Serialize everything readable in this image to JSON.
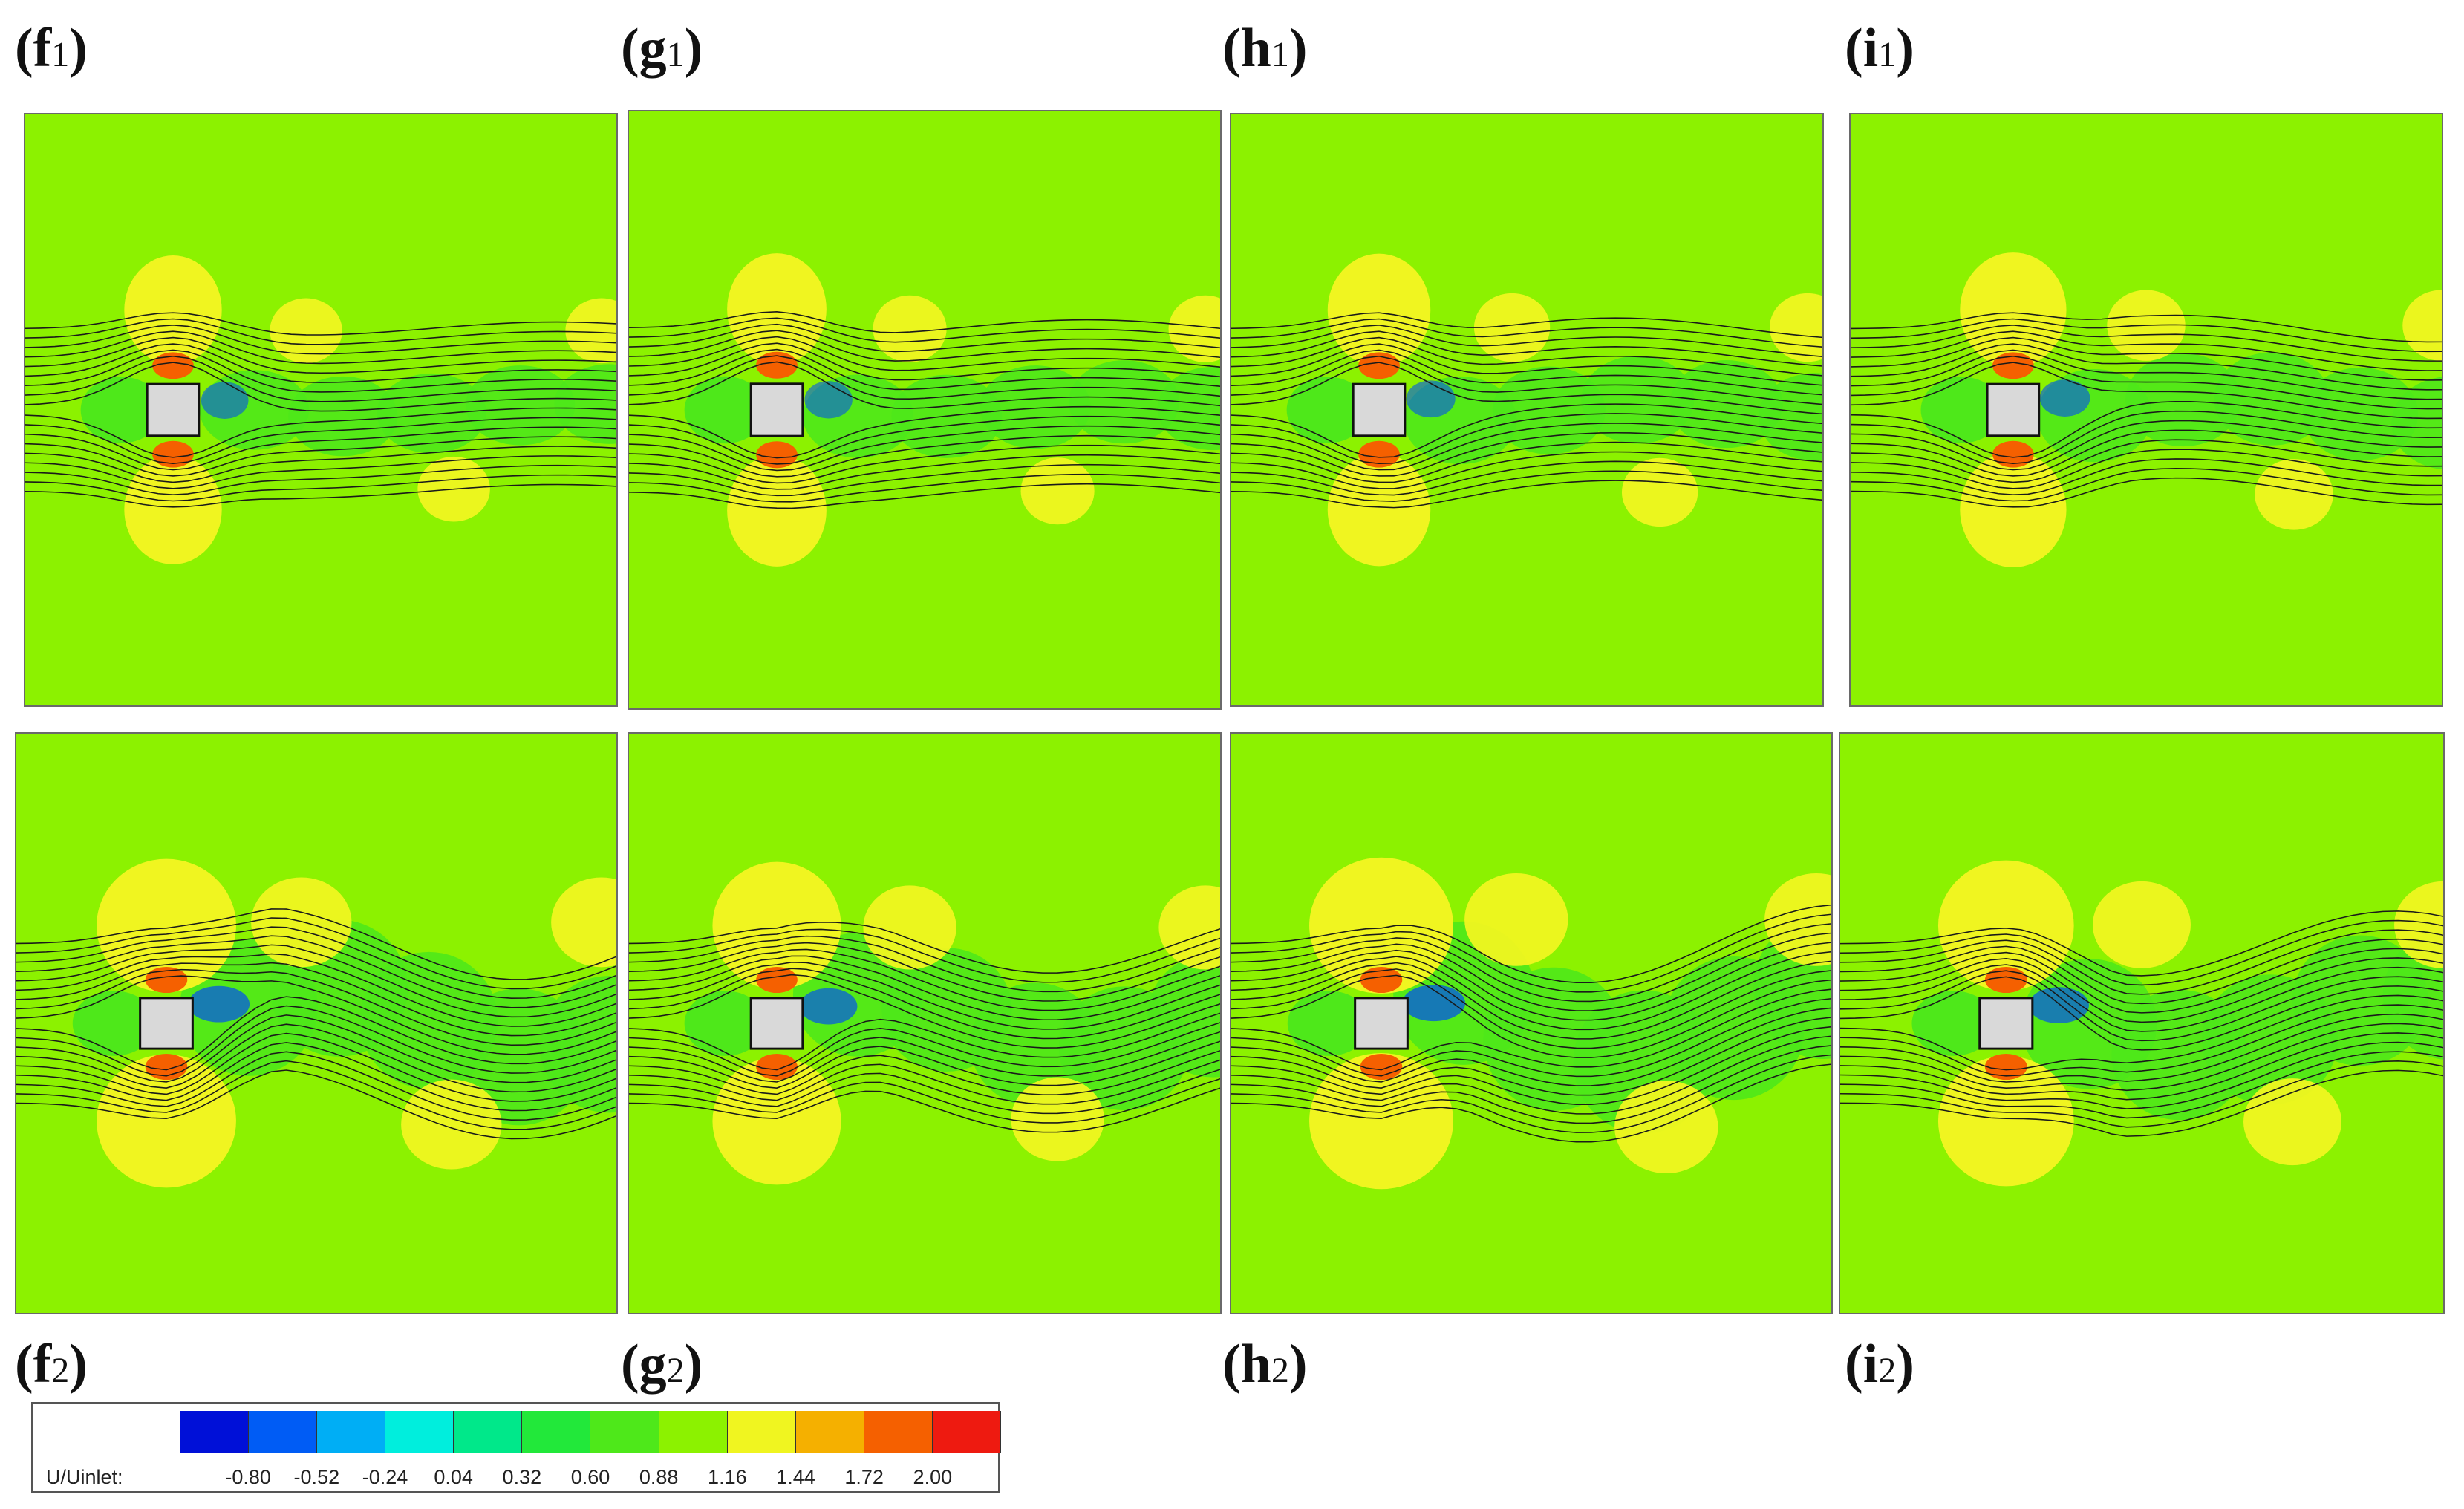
{
  "panels": {
    "f1": {
      "letter": "(f",
      "sub": "1",
      "close": ")"
    },
    "g1": {
      "letter": "(g",
      "sub": "1",
      "close": ")"
    },
    "h1": {
      "letter": "(h",
      "sub": "1",
      "close": ")"
    },
    "i1": {
      "letter": "(i",
      "sub": "1",
      "close": ")"
    },
    "f2": {
      "letter": "(f",
      "sub": "2",
      "close": ")"
    },
    "g2": {
      "letter": "(g",
      "sub": "2",
      "close": ")"
    },
    "h2": {
      "letter": "(h",
      "sub": "2",
      "close": ")"
    },
    "i2": {
      "letter": "(i",
      "sub": "2",
      "close": ")"
    }
  },
  "legend": {
    "title": "U/Uinlet:",
    "ticks": [
      "-0.80",
      "-0.52",
      "-0.24",
      "0.04",
      "0.32",
      "0.60",
      "0.88",
      "1.16",
      "1.44",
      "1.72",
      "2.00"
    ],
    "colors": [
      "#0010d8",
      "#005cf5",
      "#00aef5",
      "#00eedd",
      "#00e88a",
      "#22e83a",
      "#4ee81a",
      "#8cf200",
      "#f0f520",
      "#f5b000",
      "#f56000",
      "#ee1a10"
    ]
  },
  "contour_colors": {
    "background": "#8cf200",
    "low_speed": "#4ee81a",
    "high_speed": "#f0f520",
    "peak": "#f56000",
    "reverse": "#0050f0",
    "cylinder": "#d9d9d9"
  }
}
